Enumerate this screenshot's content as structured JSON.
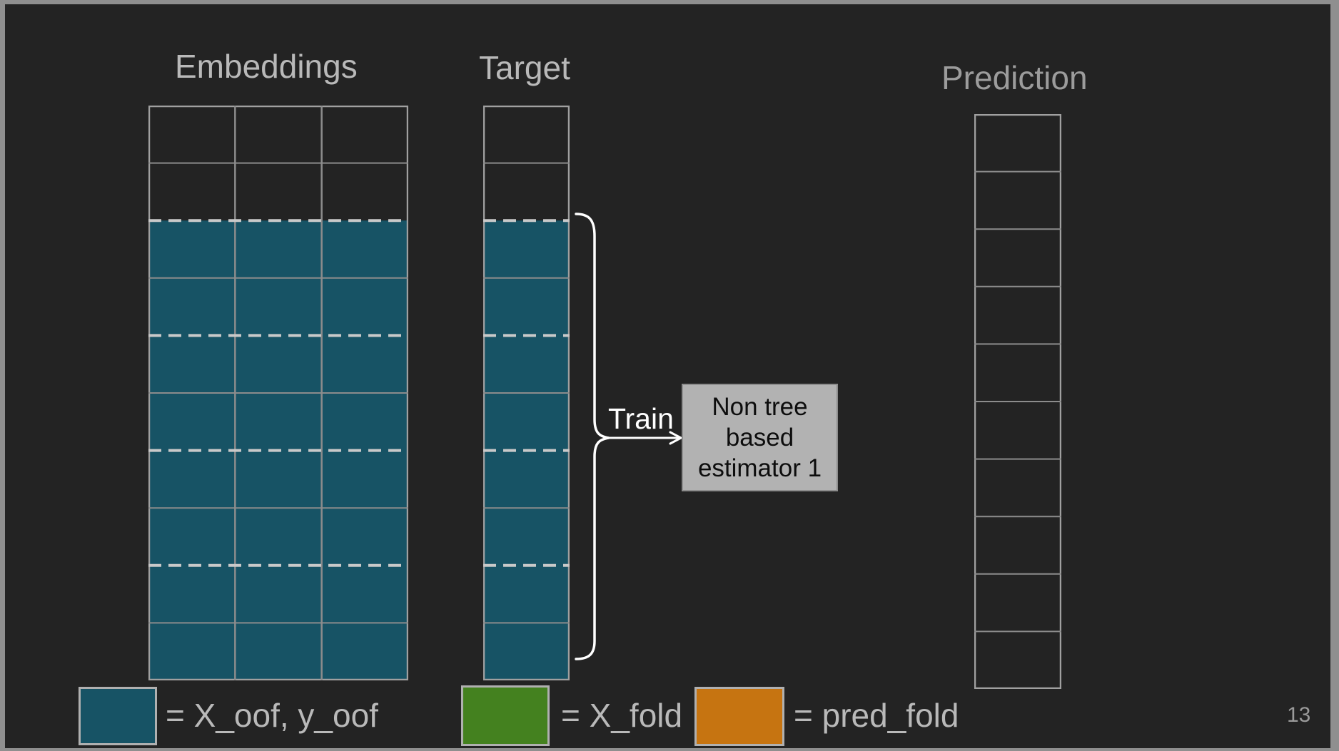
{
  "slide": {
    "page_number": "13",
    "background_color": "#232323",
    "frame_color": "#8f8f8f"
  },
  "colors": {
    "oof_teal": "#175365",
    "fold_green": "#44811f",
    "pred_orange": "#c67411",
    "grid_line": "#8c8c8c",
    "grid_border": "#a0a0a0",
    "dashed_line": "#c9c9c9",
    "box_background": "#b2b2b2",
    "title_text": "#b9b9b9",
    "white": "#ffffff"
  },
  "diagram": {
    "grids": {
      "embeddings": {
        "label": "Embeddings",
        "cols": 3,
        "rows": 10,
        "filled_from_row": 2,
        "fold_rows": 2,
        "fill_color": "#175365"
      },
      "target": {
        "label": "Target",
        "cols": 1,
        "rows": 10,
        "filled_from_row": 2,
        "fold_rows": 2,
        "fill_color": "#175365"
      },
      "prediction": {
        "label": "Prediction",
        "cols": 1,
        "rows": 10,
        "filled_from_row": null,
        "fold_rows": null,
        "fill_color": null
      }
    },
    "train_label": "Train",
    "estimator_box": {
      "lines": [
        "Non tree",
        "based",
        "estimator 1"
      ]
    }
  },
  "legend": [
    {
      "color": "#175365",
      "label": "= X_oof, y_oof"
    },
    {
      "color": "#44811f",
      "label": "= X_fold"
    },
    {
      "color": "#c67411",
      "label": "= pred_fold"
    }
  ]
}
